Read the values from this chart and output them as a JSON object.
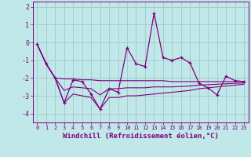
{
  "xlabel": "Windchill (Refroidissement éolien,°C)",
  "bg_color": "#c0e8e8",
  "grid_color": "#a0c8c8",
  "line_color": "#800080",
  "x_hours": [
    0,
    1,
    2,
    3,
    4,
    5,
    6,
    7,
    8,
    9,
    10,
    11,
    12,
    13,
    14,
    15,
    16,
    17,
    18,
    19,
    20,
    21,
    22,
    23
  ],
  "y_main": [
    -0.1,
    -1.2,
    -2.0,
    -3.4,
    -2.1,
    -2.2,
    -2.9,
    -3.75,
    -2.6,
    -2.8,
    -0.3,
    -1.2,
    -1.35,
    1.65,
    -0.85,
    -1.0,
    -0.85,
    -1.15,
    -2.3,
    -2.55,
    -2.95,
    -1.9,
    -2.15,
    -2.2
  ],
  "y_upper": [
    -0.1,
    -1.2,
    -2.0,
    -2.05,
    -2.05,
    -2.1,
    -2.1,
    -2.15,
    -2.15,
    -2.15,
    -2.15,
    -2.15,
    -2.15,
    -2.15,
    -2.15,
    -2.2,
    -2.2,
    -2.2,
    -2.2,
    -2.2,
    -2.2,
    -2.2,
    -2.2,
    -2.2
  ],
  "y_lower": [
    -0.1,
    -1.2,
    -2.0,
    -3.4,
    -2.9,
    -3.0,
    -3.1,
    -3.75,
    -3.1,
    -3.1,
    -3.0,
    -3.0,
    -2.95,
    -2.9,
    -2.85,
    -2.8,
    -2.75,
    -2.7,
    -2.6,
    -2.55,
    -2.5,
    -2.45,
    -2.4,
    -2.35
  ],
  "y_mid": [
    -0.1,
    -1.2,
    -2.0,
    -2.7,
    -2.5,
    -2.55,
    -2.6,
    -2.95,
    -2.6,
    -2.6,
    -2.55,
    -2.55,
    -2.55,
    -2.5,
    -2.5,
    -2.5,
    -2.475,
    -2.45,
    -2.4,
    -2.375,
    -2.35,
    -2.325,
    -2.3,
    -2.275
  ],
  "ylim": [
    -4.5,
    2.3
  ],
  "yticks": [
    -4,
    -3,
    -2,
    -1,
    0,
    1,
    2
  ],
  "xticks": [
    0,
    1,
    2,
    3,
    4,
    5,
    6,
    7,
    8,
    9,
    10,
    11,
    12,
    13,
    14,
    15,
    16,
    17,
    18,
    19,
    20,
    21,
    22,
    23
  ],
  "figsize": [
    3.2,
    2.0
  ],
  "dpi": 100
}
